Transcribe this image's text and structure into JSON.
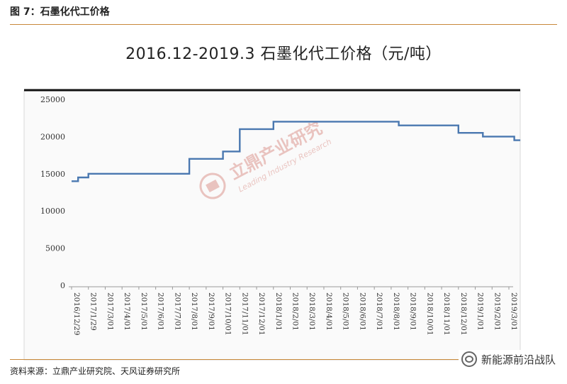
{
  "figure_label": "图 7：石墨化代工价格",
  "source": "资料来源：立鼎产业研究院、天风证券研究所",
  "brand": "新能源前沿战队",
  "watermark": {
    "main": "立鼎产业研究",
    "sub": "Leading Industry Research",
    "icon": "ld-logo-icon"
  },
  "colors": {
    "line": "#4a78b0",
    "accent_rule": "#c8893a",
    "frame": "#111111"
  },
  "chart_data": {
    "type": "line",
    "title": "2016.12-2019.3 石墨化代工价格（元/吨）",
    "xlabel": "",
    "ylabel": "",
    "ylim": [
      0,
      25000
    ],
    "yticks": [
      "0",
      "5000",
      "10000",
      "15000",
      "20000",
      "25000"
    ],
    "xticks": [
      "2016/12/29",
      "2017/1/29",
      "2017/3/01",
      "2017/4/01",
      "2017/5/01",
      "2017/6/01",
      "2017/7/01",
      "2017/8/01",
      "2017/9/01",
      "2017/10/01",
      "2017/11/01",
      "2017/12/01",
      "2018/1/01",
      "2018/2/01",
      "2018/3/01",
      "2018/4/01",
      "2018/5/01",
      "2018/6/01",
      "2018/7/01",
      "2018/8/01",
      "2018/9/01",
      "2018/10/01",
      "2018/11/01",
      "2018/12/01",
      "2019/1/01",
      "2019/2/01",
      "2019/3/01"
    ],
    "grid": false,
    "series": [
      {
        "points": [
          [
            "2016/12/29",
            14000
          ],
          [
            "2017/1/10",
            14000
          ],
          [
            "2017/1/10",
            14500
          ],
          [
            "2017/1/29",
            14500
          ],
          [
            "2017/1/29",
            15000
          ],
          [
            "2017/8/01",
            15000
          ],
          [
            "2017/8/01",
            17000
          ],
          [
            "2017/10/01",
            17000
          ],
          [
            "2017/10/01",
            18000
          ],
          [
            "2017/11/01",
            18000
          ],
          [
            "2017/11/01",
            21000
          ],
          [
            "2018/1/01",
            21000
          ],
          [
            "2018/1/01",
            22000
          ],
          [
            "2018/8/15",
            22000
          ],
          [
            "2018/8/15",
            21500
          ],
          [
            "2018/12/01",
            21500
          ],
          [
            "2018/12/01",
            20500
          ],
          [
            "2019/1/15",
            20500
          ],
          [
            "2019/1/15",
            20000
          ],
          [
            "2019/3/10",
            20000
          ],
          [
            "2019/3/10",
            19500
          ],
          [
            "2019/3/20",
            19500
          ]
        ]
      }
    ]
  }
}
